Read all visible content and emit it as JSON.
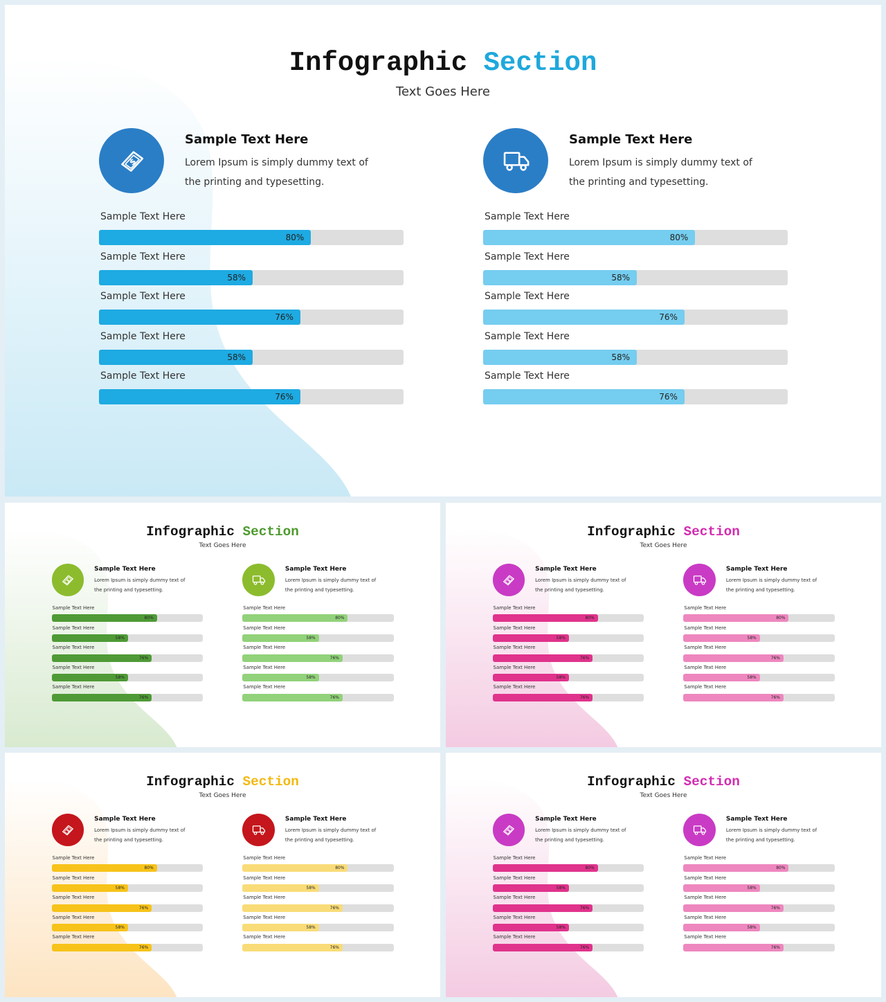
{
  "slides": [
    {
      "title_part1": "Infographic",
      "title_part2": "Section",
      "subtitle": "Text Goes Here",
      "colors": {
        "accent_title": "#1ea8dc",
        "icon_bg": "#2a7ec6",
        "bar_left": "#1eaae2",
        "bar_right": "#75cdef",
        "blob": "#c9e9f6"
      },
      "columns": [
        {
          "icon": "money-bill-icon",
          "heading": "Sample Text Here",
          "description": "Lorem Ipsum is simply dummy text of the printing and typesetting.",
          "bars": [
            {
              "label": "Sample Text Here",
              "value": 80,
              "value_label": "80%"
            },
            {
              "label": "Sample Text Here",
              "value": 58,
              "value_label": "58%"
            },
            {
              "label": "Sample Text Here",
              "value": 76,
              "value_label": "76%"
            },
            {
              "label": "Sample Text Here",
              "value": 58,
              "value_label": "58%"
            },
            {
              "label": "Sample Text Here",
              "value": 76,
              "value_label": "76%"
            }
          ]
        },
        {
          "icon": "delivery-truck-icon",
          "heading": "Sample Text Here",
          "description": "Lorem Ipsum is simply dummy text of the printing and typesetting.",
          "bars": [
            {
              "label": "Sample Text Here",
              "value": 80,
              "value_label": "80%"
            },
            {
              "label": "Sample Text Here",
              "value": 58,
              "value_label": "58%"
            },
            {
              "label": "Sample Text Here",
              "value": 76,
              "value_label": "76%"
            },
            {
              "label": "Sample Text Here",
              "value": 58,
              "value_label": "58%"
            },
            {
              "label": "Sample Text Here",
              "value": 76,
              "value_label": "76%"
            }
          ]
        }
      ]
    },
    {
      "title_part1": "Infographic",
      "title_part2": "Section",
      "subtitle": "Text Goes Here",
      "colors": {
        "accent_title": "#4e9a2e",
        "icon_bg": "#8cbc2d",
        "bar_left": "#4f9a36",
        "bar_right": "#92d27a",
        "blob": "#d8ead0"
      },
      "columns": [
        {
          "icon": "money-bill-icon",
          "heading": "Sample Text Here",
          "description": "Lorem Ipsum is simply dummy text of the printing and typesetting.",
          "bars": [
            {
              "label": "Sample Text Here",
              "value": 80,
              "value_label": "80%"
            },
            {
              "label": "Sample Text Here",
              "value": 58,
              "value_label": "58%"
            },
            {
              "label": "Sample Text Here",
              "value": 76,
              "value_label": "76%"
            },
            {
              "label": "Sample Text Here",
              "value": 58,
              "value_label": "58%"
            },
            {
              "label": "Sample Text Here",
              "value": 76,
              "value_label": "76%"
            }
          ]
        },
        {
          "icon": "delivery-truck-icon",
          "heading": "Sample Text Here",
          "description": "Lorem Ipsum is simply dummy text of the printing and typesetting.",
          "bars": [
            {
              "label": "Sample Text Here",
              "value": 80,
              "value_label": "80%"
            },
            {
              "label": "Sample Text Here",
              "value": 58,
              "value_label": "58%"
            },
            {
              "label": "Sample Text Here",
              "value": 76,
              "value_label": "76%"
            },
            {
              "label": "Sample Text Here",
              "value": 58,
              "value_label": "58%"
            },
            {
              "label": "Sample Text Here",
              "value": 76,
              "value_label": "76%"
            }
          ]
        }
      ]
    },
    {
      "title_part1": "Infographic",
      "title_part2": "Section",
      "subtitle": "Text Goes Here",
      "colors": {
        "accent_title": "#d32bb0",
        "icon_bg": "#c93bc4",
        "bar_left": "#e0338c",
        "bar_right": "#ee87bf",
        "blob": "#f4cbe2"
      },
      "columns": [
        {
          "icon": "money-bill-icon",
          "heading": "Sample Text Here",
          "description": "Lorem Ipsum is simply dummy text of the printing and typesetting.",
          "bars": [
            {
              "label": "Sample Text Here",
              "value": 80,
              "value_label": "80%"
            },
            {
              "label": "Sample Text Here",
              "value": 58,
              "value_label": "58%"
            },
            {
              "label": "Sample Text Here",
              "value": 76,
              "value_label": "76%"
            },
            {
              "label": "Sample Text Here",
              "value": 58,
              "value_label": "58%"
            },
            {
              "label": "Sample Text Here",
              "value": 76,
              "value_label": "76%"
            }
          ]
        },
        {
          "icon": "delivery-truck-icon",
          "heading": "Sample Text Here",
          "description": "Lorem Ipsum is simply dummy text of the printing and typesetting.",
          "bars": [
            {
              "label": "Sample Text Here",
              "value": 80,
              "value_label": "80%"
            },
            {
              "label": "Sample Text Here",
              "value": 58,
              "value_label": "58%"
            },
            {
              "label": "Sample Text Here",
              "value": 76,
              "value_label": "76%"
            },
            {
              "label": "Sample Text Here",
              "value": 58,
              "value_label": "58%"
            },
            {
              "label": "Sample Text Here",
              "value": 76,
              "value_label": "76%"
            }
          ]
        }
      ]
    },
    {
      "title_part1": "Infographic",
      "title_part2": "Section",
      "subtitle": "Text Goes Here",
      "colors": {
        "accent_title": "#f2b90f",
        "icon_bg": "#c4161c",
        "bar_left": "#f7c31a",
        "bar_right": "#f9dc78",
        "blob": "#fde4c2"
      },
      "columns": [
        {
          "icon": "money-bill-icon",
          "heading": "Sample Text Here",
          "description": "Lorem Ipsum is simply dummy text of the printing and typesetting.",
          "bars": [
            {
              "label": "Sample Text Here",
              "value": 80,
              "value_label": "80%"
            },
            {
              "label": "Sample Text Here",
              "value": 58,
              "value_label": "58%"
            },
            {
              "label": "Sample Text Here",
              "value": 76,
              "value_label": "76%"
            },
            {
              "label": "Sample Text Here",
              "value": 58,
              "value_label": "58%"
            },
            {
              "label": "Sample Text Here",
              "value": 76,
              "value_label": "76%"
            }
          ]
        },
        {
          "icon": "delivery-truck-icon",
          "heading": "Sample Text Here",
          "description": "Lorem Ipsum is simply dummy text of the printing and typesetting.",
          "bars": [
            {
              "label": "Sample Text Here",
              "value": 80,
              "value_label": "80%"
            },
            {
              "label": "Sample Text Here",
              "value": 58,
              "value_label": "58%"
            },
            {
              "label": "Sample Text Here",
              "value": 76,
              "value_label": "76%"
            },
            {
              "label": "Sample Text Here",
              "value": 58,
              "value_label": "58%"
            },
            {
              "label": "Sample Text Here",
              "value": 76,
              "value_label": "76%"
            }
          ]
        }
      ]
    },
    {
      "title_part1": "Infographic",
      "title_part2": "Section",
      "subtitle": "Text Goes Here",
      "colors": {
        "accent_title": "#d32bb0",
        "icon_bg": "#c93bc4",
        "bar_left": "#e0338c",
        "bar_right": "#ee87bf",
        "blob": "#f4cbe2"
      },
      "columns": [
        {
          "icon": "money-bill-icon",
          "heading": "Sample Text Here",
          "description": "Lorem Ipsum is simply dummy text of the printing and typesetting.",
          "bars": [
            {
              "label": "Sample Text Here",
              "value": 80,
              "value_label": "80%"
            },
            {
              "label": "Sample Text Here",
              "value": 58,
              "value_label": "58%"
            },
            {
              "label": "Sample Text Here",
              "value": 76,
              "value_label": "76%"
            },
            {
              "label": "Sample Text Here",
              "value": 58,
              "value_label": "58%"
            },
            {
              "label": "Sample Text Here",
              "value": 76,
              "value_label": "76%"
            }
          ]
        },
        {
          "icon": "delivery-truck-icon",
          "heading": "Sample Text Here",
          "description": "Lorem Ipsum is simply dummy text of the printing and typesetting.",
          "bars": [
            {
              "label": "Sample Text Here",
              "value": 80,
              "value_label": "80%"
            },
            {
              "label": "Sample Text Here",
              "value": 58,
              "value_label": "58%"
            },
            {
              "label": "Sample Text Here",
              "value": 76,
              "value_label": "76%"
            },
            {
              "label": "Sample Text Here",
              "value": 58,
              "value_label": "58%"
            },
            {
              "label": "Sample Text Here",
              "value": 76,
              "value_label": "76%"
            }
          ]
        }
      ]
    }
  ]
}
